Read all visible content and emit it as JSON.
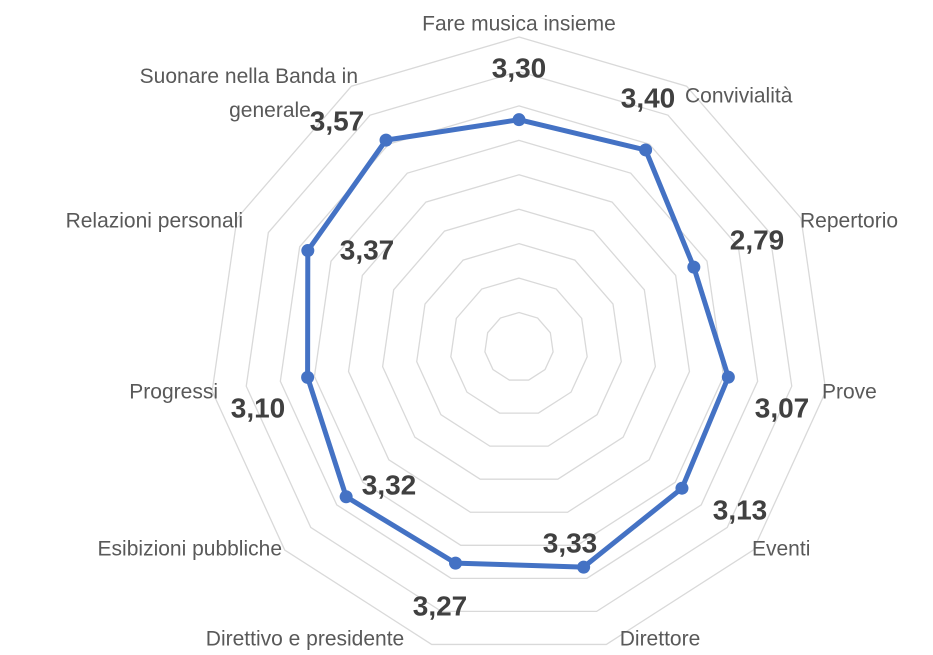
{
  "chart_data": {
    "type": "radar",
    "categories": [
      "Fare musica insieme",
      "Convivialità",
      "Repertorio",
      "Prove",
      "Eventi",
      "Direttore",
      "Direttivo e presidente",
      "Esibizioni pubbliche",
      "Progressi",
      "Relazioni personali",
      "Suonare nella Banda in generale"
    ],
    "values": [
      3.3,
      3.4,
      2.79,
      3.07,
      3.13,
      3.33,
      3.27,
      3.32,
      3.1,
      3.37,
      3.57
    ],
    "value_labels": [
      "3,30",
      "3,40",
      "2,79",
      "3,07",
      "3,13",
      "3,33",
      "3,27",
      "3,32",
      "3,10",
      "3,37",
      "3,57"
    ],
    "color": "#4472c4",
    "ylim": [
      0,
      4.5
    ],
    "yticks": [
      0.5,
      1,
      1.5,
      2,
      2.5,
      3,
      3.5,
      4,
      4.5
    ],
    "grid": true
  }
}
